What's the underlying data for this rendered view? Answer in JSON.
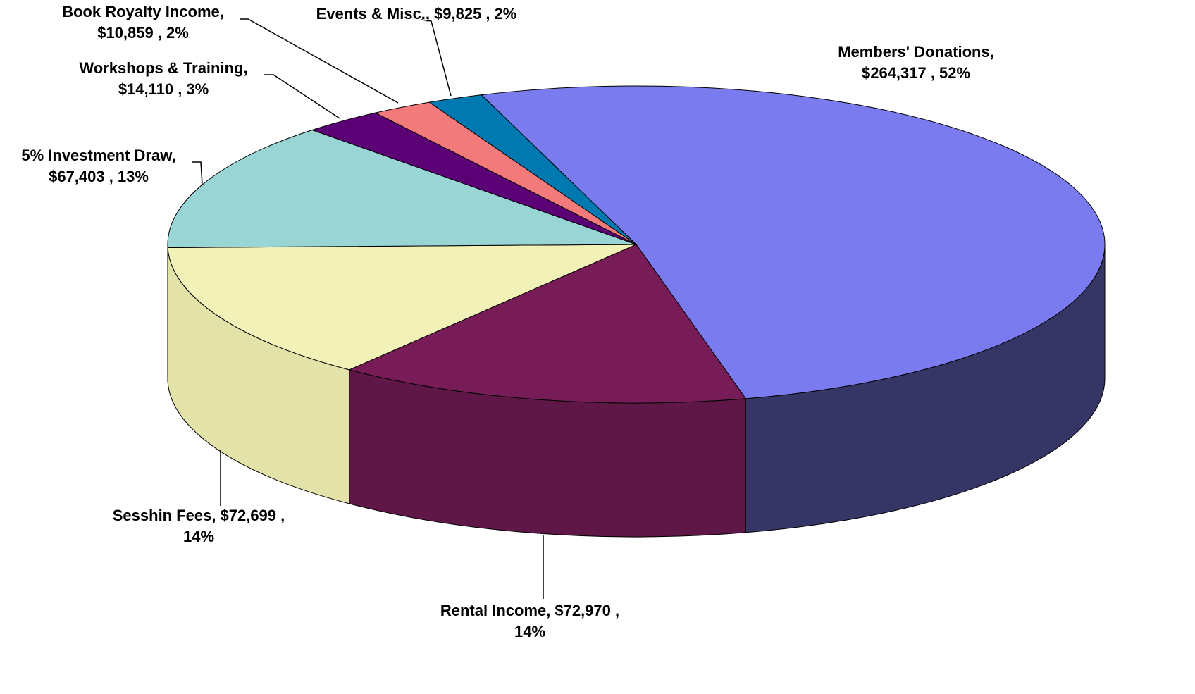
{
  "chart_data": {
    "type": "pie3d",
    "categories": [
      "Members' Donations,",
      "Rental Income,",
      "Sesshin Fees,",
      "5% Investment Draw,",
      "Workshops & Training,",
      "Book Royalty Income,",
      "Events & Misc.,"
    ],
    "values": [
      264317,
      72970,
      72699,
      67403,
      14110,
      10859,
      9825
    ],
    "value_labels": [
      "$264,317 ,",
      "$72,970 ,",
      "$72,699 ,",
      "$67,403 ,",
      "$14,110 ,",
      "$10,859 ,",
      "$9,825 ,"
    ],
    "percents": [
      52,
      14,
      14,
      13,
      3,
      2,
      2
    ],
    "percent_labels": [
      "52%",
      "14%",
      "14%",
      "13%",
      "3%",
      "2%",
      "2%"
    ],
    "colors": [
      "#7b7bf0",
      "#781c57",
      "#f2f2b8",
      "#99d5d5",
      "#5c0075",
      "#f27a7a",
      "#0078b0"
    ],
    "side_colors": [
      "#363666",
      "#5e1746",
      "#e3e2a8",
      "#7fb5b5",
      "#47005c",
      "#c46060",
      "#005f8c"
    ]
  }
}
